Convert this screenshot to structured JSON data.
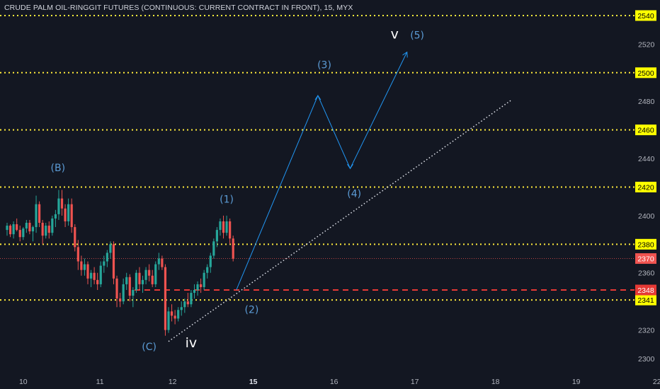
{
  "title": "CRUDE PALM OIL-RINGGIT FUTURES (CONTINUOUS: CURRENT CONTRACT IN FRONT), 15, MYX",
  "colors": {
    "background": "#131722",
    "axis_text": "#b2b5be",
    "level_line": "#ffeb3b",
    "level_tag_bg": "#ffff00",
    "support_line": "#e53935",
    "current_price_bg": "#ef5350",
    "candle_up": "#26a69a",
    "candle_down": "#ef5350",
    "projection": "#2196f3",
    "wave_label": "#5b9bd5",
    "trendline": "#e0e3eb"
  },
  "chart_data": {
    "type": "candlestick",
    "x_ticks": [
      "10",
      "11",
      "12",
      "15",
      "16",
      "17",
      "18",
      "19",
      "22"
    ],
    "y_ticks": [
      2300,
      2320,
      2340,
      2360,
      2380,
      2400,
      2420,
      2440,
      2460,
      2480,
      2500,
      2520,
      2540
    ],
    "ylim": [
      2296,
      2546
    ],
    "x_domain": [
      0,
      10
    ],
    "x_tick_positions": [
      0.2,
      1.15,
      2.05,
      3.05,
      4.05,
      5.05,
      6.05,
      7.05,
      8.05
    ],
    "horizontal_levels": [
      2540,
      2500,
      2460,
      2420,
      2380,
      2341
    ],
    "support_level": 2348,
    "current_price": 2370,
    "level_tags": [
      "2540",
      "2500",
      "2460",
      "2420",
      "2380",
      "2341"
    ],
    "support_tag": "2348",
    "current_tag": "2370",
    "candles": [
      [
        0.0,
        2390,
        2395,
        2386,
        2393
      ],
      [
        0.04,
        2393,
        2394,
        2385,
        2387
      ],
      [
        0.08,
        2387,
        2396,
        2384,
        2394
      ],
      [
        0.12,
        2394,
        2398,
        2389,
        2390
      ],
      [
        0.16,
        2390,
        2393,
        2382,
        2385
      ],
      [
        0.2,
        2385,
        2392,
        2383,
        2391
      ],
      [
        0.24,
        2391,
        2397,
        2388,
        2395
      ],
      [
        0.28,
        2395,
        2397,
        2387,
        2389
      ],
      [
        0.32,
        2389,
        2393,
        2382,
        2392
      ],
      [
        0.36,
        2392,
        2414,
        2388,
        2408
      ],
      [
        0.4,
        2408,
        2410,
        2392,
        2395
      ],
      [
        0.44,
        2395,
        2397,
        2380,
        2386
      ],
      [
        0.48,
        2386,
        2395,
        2384,
        2393
      ],
      [
        0.52,
        2393,
        2396,
        2384,
        2388
      ],
      [
        0.56,
        2388,
        2400,
        2386,
        2398
      ],
      [
        0.6,
        2398,
        2404,
        2392,
        2401
      ],
      [
        0.64,
        2401,
        2418,
        2397,
        2412
      ],
      [
        0.68,
        2412,
        2418,
        2400,
        2405
      ],
      [
        0.72,
        2405,
        2408,
        2392,
        2396
      ],
      [
        0.76,
        2396,
        2412,
        2393,
        2408
      ],
      [
        0.8,
        2408,
        2412,
        2388,
        2392
      ],
      [
        0.84,
        2392,
        2394,
        2375,
        2378
      ],
      [
        0.88,
        2378,
        2383,
        2362,
        2368
      ],
      [
        0.92,
        2368,
        2372,
        2358,
        2362
      ],
      [
        0.96,
        2362,
        2370,
        2358,
        2366
      ],
      [
        1.0,
        2366,
        2368,
        2352,
        2356
      ],
      [
        1.04,
        2356,
        2362,
        2350,
        2360
      ],
      [
        1.08,
        2360,
        2364,
        2352,
        2355
      ],
      [
        1.12,
        2355,
        2360,
        2348,
        2352
      ],
      [
        1.16,
        2352,
        2368,
        2350,
        2365
      ],
      [
        1.2,
        2365,
        2372,
        2360,
        2368
      ],
      [
        1.24,
        2368,
        2376,
        2364,
        2374
      ],
      [
        1.28,
        2374,
        2382,
        2370,
        2380
      ],
      [
        1.32,
        2380,
        2382,
        2352,
        2356
      ],
      [
        1.36,
        2356,
        2358,
        2336,
        2342
      ],
      [
        1.4,
        2342,
        2346,
        2336,
        2340
      ],
      [
        1.44,
        2340,
        2356,
        2338,
        2352
      ],
      [
        1.48,
        2352,
        2360,
        2348,
        2357
      ],
      [
        1.52,
        2357,
        2359,
        2340,
        2344
      ],
      [
        1.56,
        2344,
        2350,
        2336,
        2348
      ],
      [
        1.6,
        2348,
        2362,
        2346,
        2360
      ],
      [
        1.64,
        2360,
        2364,
        2348,
        2352
      ],
      [
        1.68,
        2352,
        2358,
        2346,
        2355
      ],
      [
        1.72,
        2355,
        2364,
        2352,
        2362
      ],
      [
        1.76,
        2362,
        2366,
        2354,
        2358
      ],
      [
        1.8,
        2358,
        2362,
        2350,
        2352
      ],
      [
        1.84,
        2352,
        2368,
        2350,
        2366
      ],
      [
        1.88,
        2366,
        2374,
        2362,
        2370
      ],
      [
        1.92,
        2370,
        2372,
        2362,
        2364
      ],
      [
        1.96,
        2364,
        2366,
        2316,
        2320
      ],
      [
        2.0,
        2320,
        2336,
        2318,
        2333
      ],
      [
        2.04,
        2333,
        2338,
        2326,
        2330
      ],
      [
        2.08,
        2330,
        2334,
        2324,
        2328
      ],
      [
        2.12,
        2328,
        2336,
        2326,
        2334
      ],
      [
        2.16,
        2334,
        2340,
        2330,
        2336
      ],
      [
        2.2,
        2336,
        2342,
        2332,
        2340
      ],
      [
        2.24,
        2340,
        2346,
        2336,
        2338
      ],
      [
        2.28,
        2338,
        2348,
        2336,
        2346
      ],
      [
        2.32,
        2346,
        2352,
        2342,
        2348
      ],
      [
        2.36,
        2348,
        2354,
        2344,
        2352
      ],
      [
        2.4,
        2352,
        2356,
        2346,
        2350
      ],
      [
        2.44,
        2350,
        2362,
        2348,
        2360
      ],
      [
        2.48,
        2360,
        2366,
        2356,
        2364
      ],
      [
        2.52,
        2364,
        2374,
        2360,
        2372
      ],
      [
        2.56,
        2372,
        2384,
        2370,
        2382
      ],
      [
        2.6,
        2382,
        2392,
        2378,
        2390
      ],
      [
        2.64,
        2390,
        2398,
        2386,
        2396
      ],
      [
        2.68,
        2396,
        2400,
        2384,
        2388
      ],
      [
        2.72,
        2388,
        2400,
        2386,
        2396
      ],
      [
        2.76,
        2396,
        2398,
        2380,
        2384
      ],
      [
        2.8,
        2384,
        2386,
        2368,
        2370
      ]
    ],
    "projection_path": [
      [
        2.84,
        2348
      ],
      [
        3.85,
        2484
      ],
      [
        4.25,
        2433
      ],
      [
        4.95,
        2514
      ]
    ],
    "trendline": [
      [
        2.0,
        2312
      ],
      [
        6.25,
        2481
      ]
    ],
    "wave_labels": [
      {
        "text": "(B)",
        "x": 0.63,
        "y": 2431,
        "color": "blue",
        "size": "normal"
      },
      {
        "text": "(1)",
        "x": 2.72,
        "y": 2409,
        "color": "blue",
        "size": "normal"
      },
      {
        "text": "(C)",
        "x": 1.76,
        "y": 2306,
        "color": "blue",
        "size": "normal"
      },
      {
        "text": "iv",
        "x": 2.28,
        "y": 2308,
        "color": "white",
        "size": "large"
      },
      {
        "text": "(2)",
        "x": 3.03,
        "y": 2332,
        "color": "blue",
        "size": "normal"
      },
      {
        "text": "(3)",
        "x": 3.93,
        "y": 2503,
        "color": "blue",
        "size": "normal"
      },
      {
        "text": "(4)",
        "x": 4.3,
        "y": 2413,
        "color": "blue",
        "size": "normal"
      },
      {
        "text": "v",
        "x": 4.8,
        "y": 2524,
        "color": "white",
        "size": "large"
      },
      {
        "text": "(5)",
        "x": 5.08,
        "y": 2524,
        "color": "blue",
        "size": "normal"
      }
    ]
  }
}
